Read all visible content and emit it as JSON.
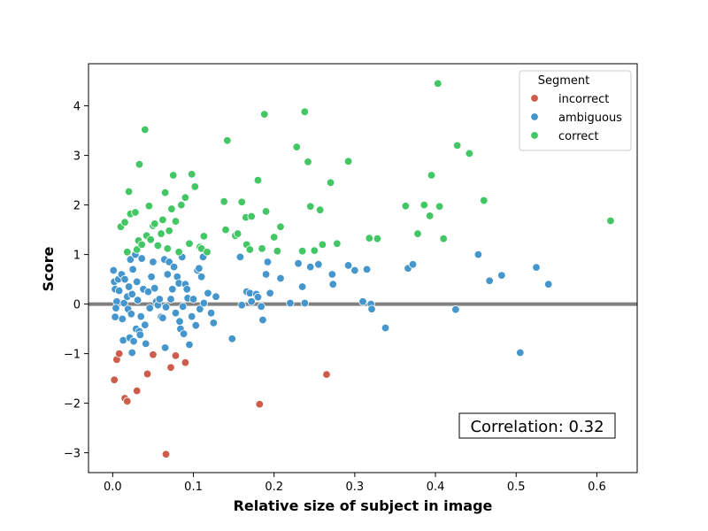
{
  "chart_data": {
    "type": "scatter",
    "xlabel": "Relative size of subject in image",
    "ylabel": "Score",
    "xlim": [
      -0.03,
      0.65
    ],
    "ylim": [
      -3.4,
      4.85
    ],
    "xticks": [
      0.0,
      0.1,
      0.2,
      0.3,
      0.4,
      0.5,
      0.6
    ],
    "xtick_labels": [
      "0.0",
      "0.1",
      "0.2",
      "0.3",
      "0.4",
      "0.5",
      "0.6"
    ],
    "yticks": [
      -3,
      -2,
      -1,
      0,
      1,
      2,
      3,
      4
    ],
    "ytick_labels": [
      "−3",
      "−2",
      "−1",
      "0",
      "1",
      "2",
      "3",
      "4"
    ],
    "grid": false,
    "reference_line": {
      "y": 0,
      "color": "#808080"
    },
    "legend": {
      "title": "Segment",
      "placement": "top-right"
    },
    "annotation": {
      "text": "Correlation: 0.32",
      "placement": "bottom-right"
    },
    "series": [
      {
        "name": "incorrect",
        "color": "#cd5c4a",
        "points": [
          [
            0.005,
            -1.12
          ],
          [
            0.008,
            -1.0
          ],
          [
            0.002,
            -1.53
          ],
          [
            0.015,
            -1.9
          ],
          [
            0.018,
            -1.96
          ],
          [
            0.03,
            -1.75
          ],
          [
            0.043,
            -1.41
          ],
          [
            0.05,
            -1.02
          ],
          [
            0.072,
            -1.28
          ],
          [
            0.078,
            -1.04
          ],
          [
            0.09,
            -1.18
          ],
          [
            0.066,
            -3.03
          ],
          [
            0.182,
            -2.02
          ],
          [
            0.265,
            -1.42
          ]
        ]
      },
      {
        "name": "ambiguous",
        "color": "#4596cd",
        "points": [
          [
            0.001,
            0.68
          ],
          [
            0.002,
            0.45
          ],
          [
            0.003,
            0.3
          ],
          [
            0.005,
            0.05
          ],
          [
            0.004,
            -0.08
          ],
          [
            0.003,
            -0.26
          ],
          [
            0.007,
            0.5
          ],
          [
            0.008,
            0.27
          ],
          [
            0.011,
            0.6
          ],
          [
            0.012,
            -0.3
          ],
          [
            0.013,
            -0.73
          ],
          [
            0.015,
            0.5
          ],
          [
            0.014,
            0.02
          ],
          [
            0.018,
            0.15
          ],
          [
            0.02,
            0.35
          ],
          [
            0.019,
            -0.1
          ],
          [
            0.021,
            -0.68
          ],
          [
            0.022,
            0.9
          ],
          [
            0.025,
            0.7
          ],
          [
            0.024,
            0.2
          ],
          [
            0.023,
            -0.2
          ],
          [
            0.026,
            -0.75
          ],
          [
            0.024,
            -0.98
          ],
          [
            0.028,
            1.0
          ],
          [
            0.03,
            0.45
          ],
          [
            0.031,
            0.08
          ],
          [
            0.029,
            -0.5
          ],
          [
            0.033,
            -0.55
          ],
          [
            0.034,
            -0.62
          ],
          [
            0.036,
            0.92
          ],
          [
            0.038,
            0.3
          ],
          [
            0.035,
            -0.25
          ],
          [
            0.04,
            -0.42
          ],
          [
            0.041,
            -0.8
          ],
          [
            0.044,
            0.25
          ],
          [
            0.046,
            -0.08
          ],
          [
            0.048,
            0.55
          ],
          [
            0.05,
            0.85
          ],
          [
            0.052,
            0.32
          ],
          [
            0.054,
            0.05
          ],
          [
            0.056,
            -0.02
          ],
          [
            0.058,
            0.1
          ],
          [
            0.06,
            -0.26
          ],
          [
            0.062,
            -0.28
          ],
          [
            0.064,
            0.9
          ],
          [
            0.065,
            -0.88
          ],
          [
            0.066,
            -0.06
          ],
          [
            0.068,
            0.6
          ],
          [
            0.07,
            0.85
          ],
          [
            0.072,
            0.1
          ],
          [
            0.074,
            0.3
          ],
          [
            0.076,
            0.75
          ],
          [
            0.078,
            -0.18
          ],
          [
            0.08,
            0.55
          ],
          [
            0.082,
            0.42
          ],
          [
            0.083,
            -0.35
          ],
          [
            0.084,
            -0.5
          ],
          [
            0.086,
            0.95
          ],
          [
            0.087,
            -0.05
          ],
          [
            0.088,
            -0.6
          ],
          [
            0.09,
            0.4
          ],
          [
            0.092,
            0.3
          ],
          [
            0.093,
            0.12
          ],
          [
            0.095,
            -0.82
          ],
          [
            0.098,
            -0.25
          ],
          [
            0.1,
            0.1
          ],
          [
            0.103,
            -0.43
          ],
          [
            0.105,
            0.68
          ],
          [
            0.107,
            0.72
          ],
          [
            0.108,
            -0.1
          ],
          [
            0.11,
            0.55
          ],
          [
            0.112,
            0.95
          ],
          [
            0.113,
            0.02
          ],
          [
            0.118,
            0.22
          ],
          [
            0.122,
            -0.18
          ],
          [
            0.125,
            -0.38
          ],
          [
            0.128,
            0.15
          ],
          [
            0.148,
            -0.7
          ],
          [
            0.158,
            0.95
          ],
          [
            0.16,
            -0.02
          ],
          [
            0.166,
            0.25
          ],
          [
            0.17,
            0.22
          ],
          [
            0.172,
            0.05
          ],
          [
            0.178,
            0.2
          ],
          [
            0.18,
            0.14
          ],
          [
            0.184,
            -0.05
          ],
          [
            0.186,
            -0.32
          ],
          [
            0.19,
            0.6
          ],
          [
            0.192,
            0.85
          ],
          [
            0.195,
            0.22
          ],
          [
            0.208,
            0.52
          ],
          [
            0.22,
            0.02
          ],
          [
            0.23,
            0.82
          ],
          [
            0.235,
            0.35
          ],
          [
            0.238,
            0.02
          ],
          [
            0.245,
            0.75
          ],
          [
            0.255,
            0.8
          ],
          [
            0.272,
            0.6
          ],
          [
            0.273,
            0.4
          ],
          [
            0.292,
            0.78
          ],
          [
            0.3,
            0.68
          ],
          [
            0.31,
            0.05
          ],
          [
            0.315,
            0.7
          ],
          [
            0.32,
            0.0
          ],
          [
            0.321,
            -0.1
          ],
          [
            0.338,
            -0.48
          ],
          [
            0.366,
            0.72
          ],
          [
            0.372,
            0.8
          ],
          [
            0.425,
            -0.11
          ],
          [
            0.453,
            1.0
          ],
          [
            0.467,
            0.47
          ],
          [
            0.482,
            0.58
          ],
          [
            0.505,
            -0.98
          ],
          [
            0.525,
            0.74
          ],
          [
            0.54,
            0.4
          ]
        ]
      },
      {
        "name": "correct",
        "color": "#42c764",
        "points": [
          [
            0.01,
            1.56
          ],
          [
            0.015,
            1.65
          ],
          [
            0.018,
            1.05
          ],
          [
            0.02,
            2.27
          ],
          [
            0.022,
            1.82
          ],
          [
            0.028,
            1.85
          ],
          [
            0.03,
            1.1
          ],
          [
            0.032,
            1.28
          ],
          [
            0.033,
            2.82
          ],
          [
            0.036,
            1.2
          ],
          [
            0.04,
            3.52
          ],
          [
            0.042,
            1.38
          ],
          [
            0.045,
            1.98
          ],
          [
            0.047,
            1.3
          ],
          [
            0.05,
            1.58
          ],
          [
            0.052,
            1.62
          ],
          [
            0.056,
            1.18
          ],
          [
            0.06,
            1.42
          ],
          [
            0.062,
            1.7
          ],
          [
            0.065,
            2.25
          ],
          [
            0.068,
            1.12
          ],
          [
            0.07,
            1.48
          ],
          [
            0.073,
            1.92
          ],
          [
            0.075,
            2.6
          ],
          [
            0.078,
            1.67
          ],
          [
            0.082,
            1.05
          ],
          [
            0.085,
            2.0
          ],
          [
            0.09,
            2.15
          ],
          [
            0.095,
            1.22
          ],
          [
            0.098,
            2.62
          ],
          [
            0.102,
            2.37
          ],
          [
            0.108,
            1.15
          ],
          [
            0.11,
            1.12
          ],
          [
            0.113,
            1.37
          ],
          [
            0.117,
            1.05
          ],
          [
            0.138,
            2.07
          ],
          [
            0.14,
            1.5
          ],
          [
            0.142,
            3.3
          ],
          [
            0.152,
            1.38
          ],
          [
            0.155,
            1.42
          ],
          [
            0.16,
            2.06
          ],
          [
            0.165,
            1.75
          ],
          [
            0.166,
            1.2
          ],
          [
            0.17,
            1.1
          ],
          [
            0.172,
            1.77
          ],
          [
            0.18,
            2.5
          ],
          [
            0.185,
            1.12
          ],
          [
            0.188,
            3.83
          ],
          [
            0.19,
            1.87
          ],
          [
            0.2,
            1.35
          ],
          [
            0.204,
            1.07
          ],
          [
            0.208,
            1.56
          ],
          [
            0.228,
            3.17
          ],
          [
            0.235,
            1.07
          ],
          [
            0.238,
            3.88
          ],
          [
            0.242,
            2.87
          ],
          [
            0.245,
            1.97
          ],
          [
            0.25,
            1.08
          ],
          [
            0.257,
            1.9
          ],
          [
            0.26,
            1.2
          ],
          [
            0.27,
            2.45
          ],
          [
            0.278,
            1.22
          ],
          [
            0.292,
            2.88
          ],
          [
            0.318,
            1.33
          ],
          [
            0.328,
            1.32
          ],
          [
            0.363,
            1.98
          ],
          [
            0.378,
            1.42
          ],
          [
            0.386,
            2.0
          ],
          [
            0.393,
            1.78
          ],
          [
            0.395,
            2.6
          ],
          [
            0.403,
            4.45
          ],
          [
            0.405,
            1.97
          ],
          [
            0.41,
            1.32
          ],
          [
            0.427,
            3.2
          ],
          [
            0.442,
            3.04
          ],
          [
            0.46,
            2.09
          ],
          [
            0.617,
            1.68
          ]
        ]
      }
    ]
  }
}
